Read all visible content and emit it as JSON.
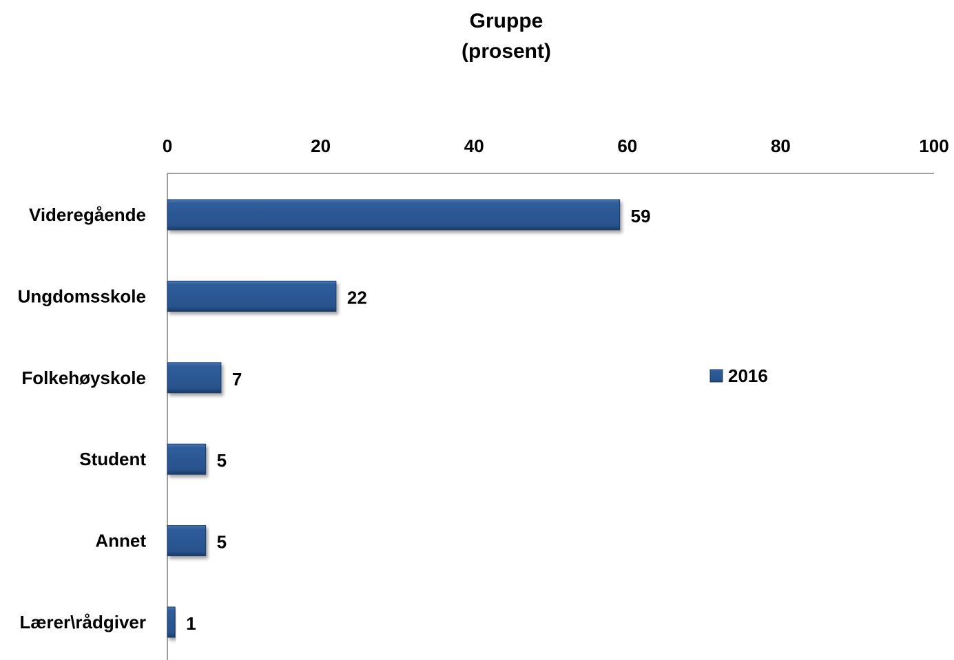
{
  "chart_data": {
    "type": "bar",
    "orientation": "horizontal",
    "title": [
      "Gruppe",
      "(prosent)"
    ],
    "xaxis": {
      "position": "top",
      "ticks": [
        0,
        20,
        40,
        60,
        80,
        100
      ],
      "range": [
        0,
        100
      ],
      "grid": false
    },
    "categories": [
      "Videregående",
      "Ungdomsskole",
      "Folkehøyskole",
      "Student",
      "Annet",
      "Lærer\\rådgiver"
    ],
    "series": [
      {
        "name": "2016",
        "values": [
          59,
          22,
          7,
          5,
          5,
          1
        ],
        "color": "#2b5590"
      }
    ],
    "data_labels": true,
    "legend": {
      "placement": "right"
    }
  }
}
